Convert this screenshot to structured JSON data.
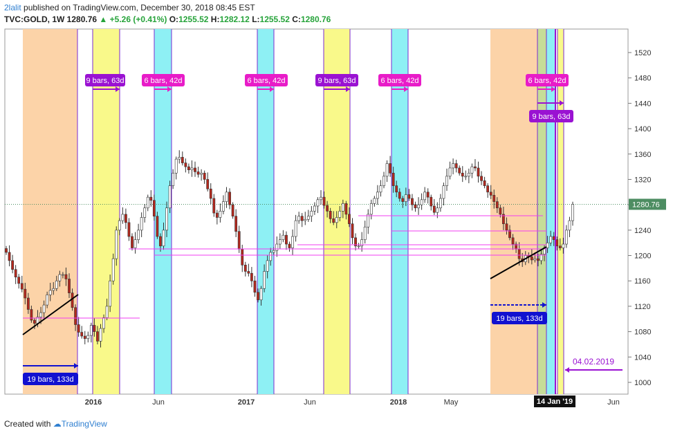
{
  "header": {
    "user": "2lalit",
    "published": " published on TradingView.com, December 30, 2018 08:45 EST",
    "symbol": "TVC:GOLD, 1W",
    "last": "1280.76",
    "change": "+5.26 (+0.41%)",
    "o_label": "O:",
    "o": "1255.52",
    "h_label": "H:",
    "h": "1282.12",
    "l_label": "L:",
    "l": "1255.52",
    "c_label": "C:",
    "c": "1280.76"
  },
  "footer": {
    "created_with": "Created with",
    "brand": "TradingView"
  },
  "colors": {
    "orange": "#fcd3a8",
    "yellow": "#f9f98a",
    "cyan": "#8ef0f4",
    "up": "#ffffff",
    "down": "#b5281d",
    "blue_label": "#1111d0",
    "magenta_label": "#e81cc8",
    "purple_label": "#9a12d2",
    "price_tag": "#4d8d62"
  },
  "chart_data": {
    "type": "candlestick",
    "timeframe": "1W",
    "yaxis": {
      "ticks": [
        1000,
        1040,
        1080,
        1120,
        1160,
        1200,
        1240,
        1280,
        1320,
        1360,
        1400,
        1440,
        1480,
        1520
      ],
      "range": [
        980,
        1540
      ]
    },
    "xaxis": {
      "labels": [
        "2016",
        "Jun",
        "2017",
        "Jun",
        "2018",
        "May",
        "Jun"
      ],
      "cursor_label": "14 Jan '19"
    },
    "last_price": "1280.76",
    "closes": [
      1205,
      1192,
      1178,
      1166,
      1156,
      1147,
      1133,
      1115,
      1098,
      1093,
      1103,
      1110,
      1122,
      1138,
      1145,
      1148,
      1160,
      1170,
      1170,
      1163,
      1141,
      1118,
      1091,
      1079,
      1073,
      1069,
      1074,
      1090,
      1080,
      1065,
      1085,
      1102,
      1120,
      1160,
      1195,
      1240,
      1255,
      1265,
      1252,
      1230,
      1212,
      1225,
      1240,
      1260,
      1275,
      1292,
      1287,
      1262,
      1230,
      1215,
      1240,
      1275,
      1310,
      1330,
      1352,
      1355,
      1346,
      1340,
      1335,
      1338,
      1332,
      1328,
      1330,
      1320,
      1305,
      1290,
      1267,
      1260,
      1270,
      1285,
      1300,
      1280,
      1262,
      1238,
      1210,
      1185,
      1175,
      1172,
      1160,
      1142,
      1130,
      1148,
      1175,
      1192,
      1205,
      1208,
      1218,
      1225,
      1232,
      1218,
      1212,
      1230,
      1255,
      1262,
      1255,
      1257,
      1262,
      1270,
      1278,
      1288,
      1292,
      1279,
      1270,
      1258,
      1252,
      1260,
      1270,
      1282,
      1265,
      1250,
      1228,
      1215,
      1215,
      1225,
      1245,
      1265,
      1282,
      1290,
      1300,
      1310,
      1325,
      1345,
      1330,
      1310,
      1300,
      1290,
      1285,
      1296,
      1290,
      1280,
      1275,
      1280,
      1288,
      1300,
      1292,
      1278,
      1268,
      1275,
      1290,
      1310,
      1325,
      1338,
      1345,
      1338,
      1330,
      1325,
      1325,
      1330,
      1340,
      1338,
      1325,
      1318,
      1310,
      1300,
      1295,
      1285,
      1275,
      1265,
      1250,
      1240,
      1228,
      1218,
      1210,
      1195,
      1190,
      1200,
      1198,
      1193,
      1195,
      1192,
      1202,
      1212,
      1220,
      1230,
      1225,
      1215,
      1212,
      1218,
      1240,
      1255,
      1280.76
    ],
    "annotations": [
      {
        "text": "9 bars, 63d",
        "style": "purple"
      },
      {
        "text": "6 bars, 42d",
        "style": "magenta"
      },
      {
        "text": "6 bars, 42d",
        "style": "magenta"
      },
      {
        "text": "9 bars, 63d",
        "style": "purple"
      },
      {
        "text": "6 bars, 42d",
        "style": "magenta"
      },
      {
        "text": "6 bars, 42d",
        "style": "magenta"
      },
      {
        "text": "9 bars, 63d",
        "style": "purple"
      },
      {
        "text": "19 bars, 133d",
        "style": "blue"
      },
      {
        "text": "19 bars, 133d",
        "style": "blue"
      },
      {
        "text": "04.02.2019",
        "style": "purple-text"
      }
    ]
  }
}
